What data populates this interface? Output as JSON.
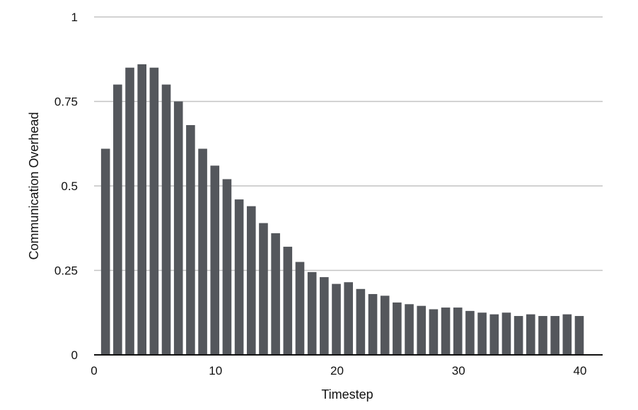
{
  "chart_data": {
    "type": "bar",
    "xlabel": "Timestep",
    "ylabel": "Communication Overhead",
    "xlim": [
      0,
      41
    ],
    "ylim": [
      0,
      1
    ],
    "x_ticks": [
      0,
      10,
      20,
      30,
      40
    ],
    "x_tick_labels": [
      "0",
      "10",
      "20",
      "30",
      "40"
    ],
    "y_ticks": [
      0,
      0.25,
      0.5,
      0.75,
      1
    ],
    "y_tick_labels": [
      "0",
      "0.25",
      "0.5",
      "0.75",
      "1"
    ],
    "grid": "horizontal",
    "legend": "none",
    "bar_color": "#54575c",
    "x": [
      1,
      2,
      3,
      4,
      5,
      6,
      7,
      8,
      9,
      10,
      11,
      12,
      13,
      14,
      15,
      16,
      17,
      18,
      19,
      20,
      21,
      22,
      23,
      24,
      25,
      26,
      27,
      28,
      29,
      30,
      31,
      32,
      33,
      34,
      35,
      36,
      37,
      38,
      39,
      40
    ],
    "values": [
      0.61,
      0.8,
      0.85,
      0.86,
      0.85,
      0.8,
      0.75,
      0.68,
      0.61,
      0.56,
      0.52,
      0.46,
      0.44,
      0.39,
      0.36,
      0.32,
      0.275,
      0.245,
      0.23,
      0.21,
      0.215,
      0.195,
      0.18,
      0.175,
      0.155,
      0.15,
      0.145,
      0.135,
      0.14,
      0.14,
      0.13,
      0.125,
      0.12,
      0.125,
      0.115,
      0.12,
      0.115,
      0.115,
      0.12,
      0.115
    ]
  }
}
